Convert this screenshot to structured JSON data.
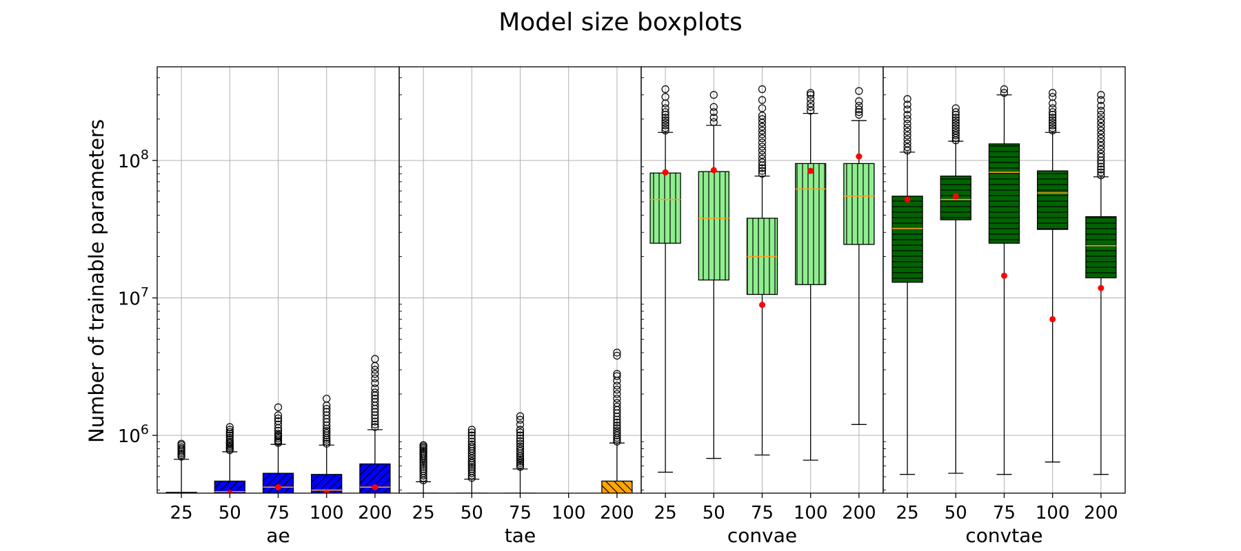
{
  "chart_data": {
    "type": "box",
    "title": "Model size boxplots",
    "ylabel": "Number of trainable parameters",
    "yscale": "log",
    "ylim": [
      380000,
      480000000
    ],
    "y_ticks": [
      {
        "value": 1000000,
        "base": "10",
        "exp": "6"
      },
      {
        "value": 10000000,
        "base": "10",
        "exp": "7"
      },
      {
        "value": 100000000,
        "base": "10",
        "exp": "8"
      }
    ],
    "grid": true,
    "categories": [
      "25",
      "50",
      "75",
      "100",
      "200"
    ],
    "panels": [
      {
        "name": "ae",
        "color": "#0000ff",
        "hatch": "diag-right",
        "boxes": [
          {
            "category": "25",
            "whislo": 300000,
            "q1": 310000,
            "med": 330000,
            "q3": 385000,
            "whishi": 670000,
            "mean": 340000,
            "fliers": [
              700000,
              720000,
              740000,
              760000,
              780000,
              800000,
              820000,
              850000,
              870000
            ]
          },
          {
            "category": "50",
            "whislo": 300000,
            "q1": 330000,
            "med": 390000,
            "q3": 465000,
            "whishi": 760000,
            "mean": 380000,
            "fliers": [
              780000,
              800000,
              820000,
              840000,
              860000,
              880000,
              900000,
              930000,
              960000,
              1000000,
              1030000,
              1060000,
              1100000,
              1150000
            ]
          },
          {
            "category": "75",
            "whislo": 300000,
            "q1": 345000,
            "med": 420000,
            "q3": 530000,
            "whishi": 860000,
            "mean": 420000,
            "fliers": [
              880000,
              900000,
              920000,
              950000,
              980000,
              1000000,
              1030000,
              1080000,
              1130000,
              1200000,
              1270000,
              1330000,
              1400000,
              1600000
            ]
          },
          {
            "category": "100",
            "whislo": 300000,
            "q1": 340000,
            "med": 400000,
            "q3": 520000,
            "whishi": 850000,
            "mean": 380000,
            "fliers": [
              870000,
              900000,
              930000,
              960000,
              1000000,
              1040000,
              1080000,
              1120000,
              1180000,
              1250000,
              1320000,
              1400000,
              1480000,
              1560000,
              1650000,
              1850000
            ]
          },
          {
            "category": "200",
            "whislo": 300000,
            "q1": 345000,
            "med": 420000,
            "q3": 620000,
            "whishi": 1100000,
            "mean": 420000,
            "fliers": [
              1150000,
              1200000,
              1260000,
              1330000,
              1400000,
              1480000,
              1560000,
              1650000,
              1750000,
              1850000,
              1950000,
              2050000,
              2200000,
              2400000,
              2600000,
              2800000,
              3000000,
              3200000,
              3600000
            ]
          }
        ]
      },
      {
        "name": "tae",
        "color": "#ffa500",
        "hatch": "diag-left",
        "boxes": [
          {
            "category": "25",
            "whislo": 300000,
            "q1": 305000,
            "med": 315000,
            "q3": 330000,
            "whishi": 460000,
            "mean": 320000,
            "fliers": [
              470000,
              490000,
              510000,
              530000,
              550000,
              570000,
              590000,
              610000,
              630000,
              650000,
              670000,
              690000,
              710000,
              730000,
              750000,
              770000,
              790000,
              810000,
              830000,
              850000
            ]
          },
          {
            "category": "50",
            "whislo": 300000,
            "q1": 305000,
            "med": 315000,
            "q3": 335000,
            "whishi": 480000,
            "mean": 320000,
            "fliers": [
              490000,
              510000,
              530000,
              550000,
              570000,
              590000,
              610000,
              630000,
              650000,
              680000,
              710000,
              740000,
              770000,
              800000,
              830000,
              860000,
              900000,
              950000,
              1000000,
              1050000,
              1100000
            ]
          },
          {
            "category": "75",
            "whislo": 300000,
            "q1": 310000,
            "med": 320000,
            "q3": 340000,
            "whishi": 570000,
            "mean": 330000,
            "fliers": [
              590000,
              610000,
              630000,
              650000,
              670000,
              690000,
              710000,
              740000,
              770000,
              800000,
              830000,
              870000,
              910000,
              950000,
              1000000,
              1050000,
              1100000,
              1200000,
              1300000,
              1380000
            ]
          },
          {
            "category": "100",
            "empty": true
          },
          {
            "category": "200",
            "whislo": 300000,
            "q1": 330000,
            "med": 380000,
            "q3": 465000,
            "whishi": 880000,
            "mean": 370000,
            "fliers": [
              900000,
              930000,
              960000,
              1000000,
              1040000,
              1080000,
              1130000,
              1180000,
              1240000,
              1300000,
              1370000,
              1450000,
              1530000,
              1620000,
              1720000,
              1850000,
              2000000,
              2150000,
              2300000,
              2500000,
              2700000,
              2800000,
              3800000,
              4000000
            ]
          }
        ]
      },
      {
        "name": "convae",
        "color": "#90ee90",
        "hatch": "vertical",
        "boxes": [
          {
            "category": "25",
            "whislo": 540000,
            "q1": 25000000,
            "med": 52000000,
            "q3": 81000000,
            "whishi": 160000000,
            "mean": 82000000,
            "fliers": [
              165000000,
              172000000,
              180000000,
              188000000,
              196000000,
              205000000,
              215000000,
              225000000,
              240000000,
              260000000,
              290000000,
              330000000
            ]
          },
          {
            "category": "50",
            "whislo": 680000,
            "q1": 13500000,
            "med": 38000000,
            "q3": 83000000,
            "whishi": 180000000,
            "mean": 85000000,
            "fliers": [
              190000000,
              205000000,
              225000000,
              245000000,
              300000000
            ]
          },
          {
            "category": "75",
            "whislo": 720000,
            "q1": 10600000,
            "med": 20000000,
            "q3": 38000000,
            "whishi": 77000000,
            "mean": 8900000,
            "fliers": [
              80000000,
              84000000,
              88000000,
              92000000,
              97000000,
              103000000,
              110000000,
              118000000,
              126000000,
              135000000,
              145000000,
              155000000,
              165000000,
              176000000,
              188000000,
              200000000,
              212000000,
              240000000,
              275000000,
              330000000
            ]
          },
          {
            "category": "100",
            "whislo": 660000,
            "q1": 12500000,
            "med": 62000000,
            "q3": 95000000,
            "whishi": 220000000,
            "mean": 84000000,
            "fliers": [
              230000000,
              245000000,
              260000000,
              280000000,
              300000000,
              310000000
            ]
          },
          {
            "category": "200",
            "whislo": 1200000,
            "q1": 24500000,
            "med": 55000000,
            "q3": 95000000,
            "whishi": 195000000,
            "mean": 107000000,
            "fliers": [
              215000000,
              225000000,
              235000000,
              250000000,
              270000000,
              320000000
            ]
          }
        ]
      },
      {
        "name": "convtae",
        "color": "#006400",
        "hatch": "horizontal",
        "boxes": [
          {
            "category": "25",
            "whislo": 520000,
            "q1": 13000000,
            "med": 32000000,
            "q3": 55000000,
            "whishi": 115000000,
            "mean": 52000000,
            "fliers": [
              118000000,
              125000000,
              133000000,
              142000000,
              152000000,
              162000000,
              173000000,
              185000000,
              200000000,
              215000000,
              235000000,
              255000000,
              280000000
            ]
          },
          {
            "category": "50",
            "whislo": 530000,
            "q1": 37000000,
            "med": 52000000,
            "q3": 77000000,
            "whishi": 138000000,
            "mean": 55000000,
            "fliers": [
              140000000,
              146000000,
              152000000,
              158000000,
              165000000,
              172000000,
              180000000,
              188000000,
              196000000,
              205000000,
              215000000,
              225000000,
              240000000
            ]
          },
          {
            "category": "75",
            "whislo": 520000,
            "q1": 25000000,
            "med": 82000000,
            "q3": 132000000,
            "whishi": 300000000,
            "mean": 14500000,
            "fliers": [
              310000000,
              330000000
            ]
          },
          {
            "category": "100",
            "whislo": 640000,
            "q1": 31500000,
            "med": 58000000,
            "q3": 84000000,
            "whishi": 160000000,
            "mean": 7000000,
            "fliers": [
              165000000,
              172000000,
              180000000,
              188000000,
              196000000,
              205000000,
              215000000,
              225000000,
              240000000,
              260000000,
              290000000,
              310000000
            ]
          },
          {
            "category": "200",
            "whislo": 520000,
            "q1": 14000000,
            "med": 24000000,
            "q3": 39000000,
            "whishi": 76000000,
            "mean": 11800000,
            "fliers": [
              78000000,
              82000000,
              86000000,
              90000000,
              95000000,
              100000000,
              106000000,
              112000000,
              120000000,
              128000000,
              136000000,
              145000000,
              155000000,
              165000000,
              176000000,
              188000000,
              200000000,
              215000000,
              230000000,
              250000000,
              275000000,
              300000000
            ]
          }
        ]
      }
    ]
  }
}
